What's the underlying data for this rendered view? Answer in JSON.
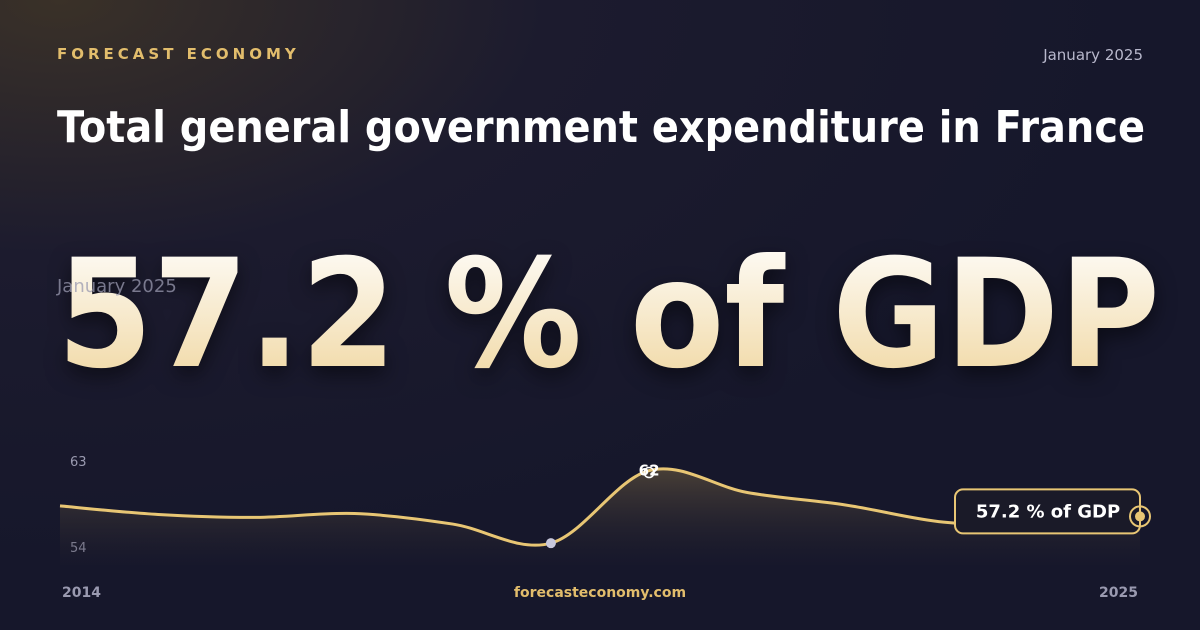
{
  "brand": "FORECAST ECONOMY",
  "date": "January 2025",
  "title": "Total general government expenditure in France",
  "headline": "57.2 % of GDP",
  "footer": "forecasteconomy.com",
  "chart_data": {
    "type": "line",
    "x": [
      2014,
      2015,
      2016,
      2017,
      2018,
      2019,
      2020,
      2021,
      2022,
      2023,
      2024,
      2025
    ],
    "values": [
      58.3,
      57.4,
      57.1,
      57.5,
      56.4,
      54.4,
      62,
      59.7,
      58.4,
      56.6,
      56.3,
      57.2
    ],
    "value_labels": [
      null,
      null,
      null,
      null,
      null,
      null,
      "62",
      null,
      null,
      null,
      null,
      "57.2 % of GDP"
    ],
    "color": "#e8c674",
    "xlim": [
      2014,
      2025
    ],
    "xticks": [
      2014,
      2025
    ],
    "ylim": [
      54,
      63
    ],
    "yticks": [
      63,
      54
    ]
  }
}
